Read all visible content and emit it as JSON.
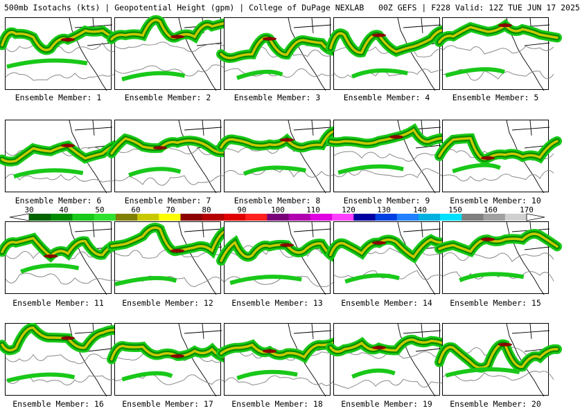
{
  "header": {
    "title": "500mb Isotachs (kts) | Geopotential Height (gpm) | College of DuPage NEXLAB   00Z GEFS | F228 Valid: 12Z TUE JUN 17 2025"
  },
  "colorbar": {
    "labels": [
      "30",
      "40",
      "50",
      "60",
      "70",
      "80",
      "90",
      "100",
      "110",
      "120",
      "130",
      "140",
      "150",
      "160",
      "170"
    ],
    "colors": [
      "#006400",
      "#008c00",
      "#19c819",
      "#30e030",
      "#808000",
      "#c8c800",
      "#ffff00",
      "#8b0000",
      "#b40000",
      "#e00000",
      "#ff2020",
      "#7a007a",
      "#b000b0",
      "#e000e0",
      "#ff40ff",
      "#0000a0",
      "#0040e0",
      "#2080ff",
      "#00b0e0",
      "#00e0ff",
      "#808080",
      "#a0a0a0",
      "#d0d0d0"
    ]
  },
  "panels": [
    {
      "caption": "Ensemble Member: 1"
    },
    {
      "caption": "Ensemble Member: 2"
    },
    {
      "caption": "Ensemble Member: 3"
    },
    {
      "caption": "Ensemble Member: 4"
    },
    {
      "caption": "Ensemble Member: 5"
    },
    {
      "caption": "Ensemble Member: 6"
    },
    {
      "caption": "Ensemble Member: 7"
    },
    {
      "caption": "Ensemble Member: 8"
    },
    {
      "caption": "Ensemble Member: 9"
    },
    {
      "caption": "Ensemble Member: 10"
    },
    {
      "caption": "Ensemble Member: 11"
    },
    {
      "caption": "Ensemble Member: 12"
    },
    {
      "caption": "Ensemble Member: 13"
    },
    {
      "caption": "Ensemble Member: 14"
    },
    {
      "caption": "Ensemble Member: 15"
    },
    {
      "caption": "Ensemble Member: 16"
    },
    {
      "caption": "Ensemble Member: 17"
    },
    {
      "caption": "Ensemble Member: 18"
    },
    {
      "caption": "Ensemble Member: 19"
    },
    {
      "caption": "Ensemble Member: 20"
    }
  ]
}
